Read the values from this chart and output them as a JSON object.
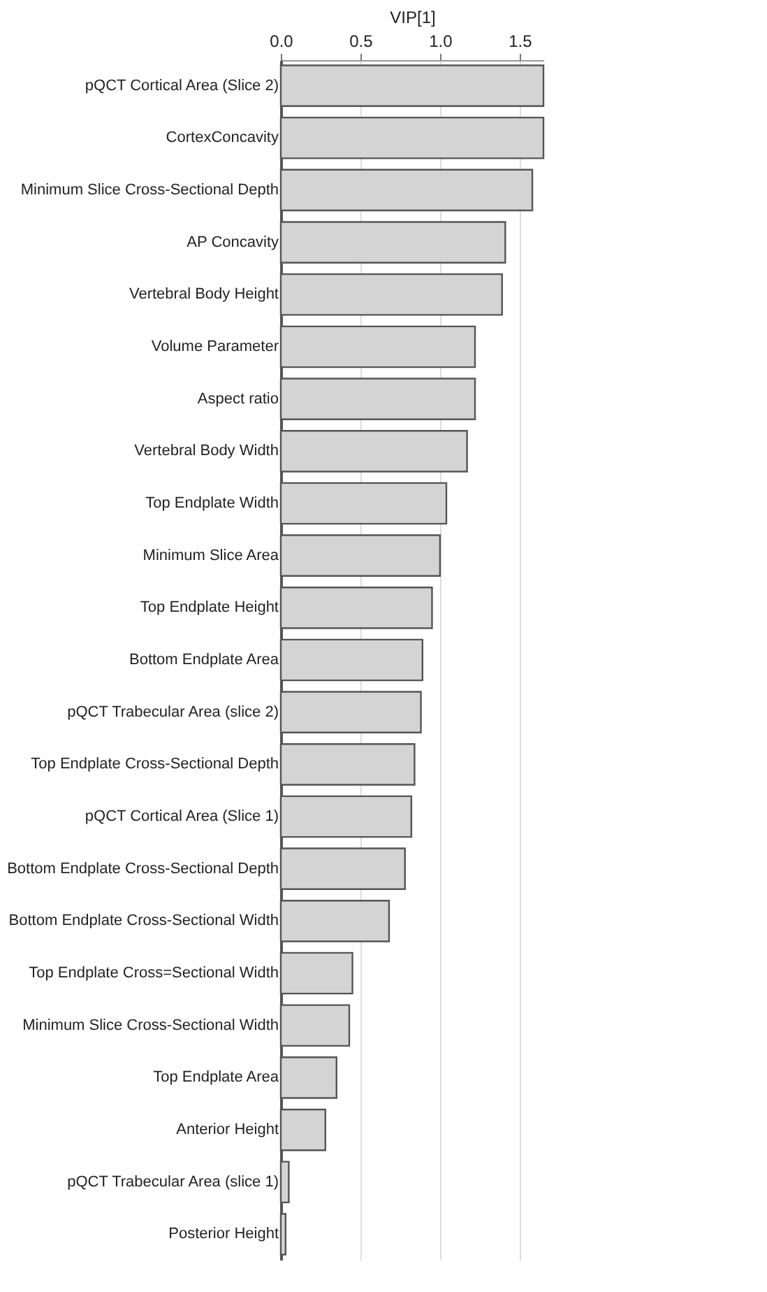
{
  "chart_data": {
    "type": "bar",
    "orientation": "horizontal",
    "xlabel": "VIP[1]",
    "categories": [
      "pQCT Cortical Area (Slice 2)",
      "CortexConcavity",
      "Minimum Slice Cross-Sectional Depth",
      "AP Concavity",
      "Vertebral Body Height",
      "Volume Parameter",
      "Aspect ratio",
      "Vertebral Body Width",
      "Top Endplate Width",
      "Minimum Slice Area",
      "Top Endplate Height",
      "Bottom Endplate Area",
      "pQCT Trabecular Area (slice 2)",
      "Top Endplate Cross-Sectional Depth",
      "pQCT Cortical Area (Slice 1)",
      "Bottom Endplate Cross-Sectional Depth",
      "Bottom Endplate Cross-Sectional Width",
      "Top Endplate Cross=Sectional Width",
      "Minimum Slice Cross-Sectional Width",
      "Top Endplate Area",
      "Anterior Height",
      "pQCT Trabecular Area (slice 1)",
      "Posterior Height"
    ],
    "values": [
      1.65,
      1.65,
      1.58,
      1.41,
      1.39,
      1.22,
      1.22,
      1.17,
      1.04,
      1.0,
      0.95,
      0.89,
      0.88,
      0.84,
      0.82,
      0.78,
      0.68,
      0.45,
      0.43,
      0.35,
      0.28,
      0.05,
      0.03
    ],
    "color": "#d4d4d4",
    "xlim": [
      0,
      1.65
    ],
    "xticks": [
      {
        "value": 0,
        "label": "0.0"
      },
      0.5,
      {
        "value": 1,
        "label": "1.0"
      },
      1.5
    ],
    "grid": "x"
  }
}
